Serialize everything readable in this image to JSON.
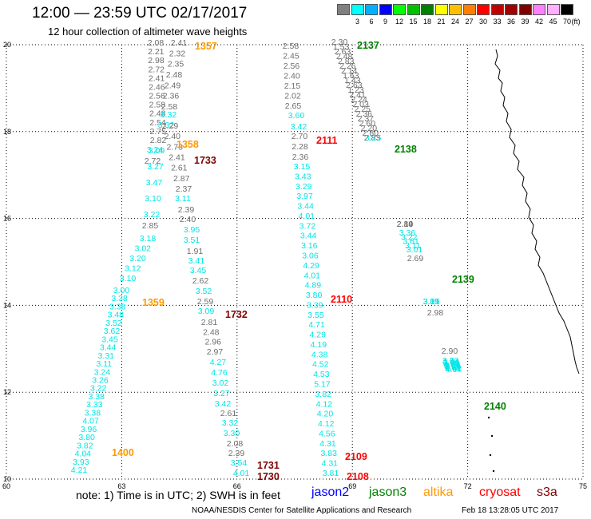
{
  "title": "12:00 — 23:59 UTC 02/17/2017",
  "subtitle": "12 hour collection of altimeter wave heights",
  "legend": {
    "unit": "(ft)",
    "bins": [
      {
        "color": "#808080",
        "label": ""
      },
      {
        "color": "#00ffff",
        "label": "3"
      },
      {
        "color": "#00b0ff",
        "label": "6"
      },
      {
        "color": "#0000ff",
        "label": "9"
      },
      {
        "color": "#00ff00",
        "label": "12"
      },
      {
        "color": "#00c000",
        "label": "15"
      },
      {
        "color": "#008000",
        "label": "18"
      },
      {
        "color": "#ffff00",
        "label": "21"
      },
      {
        "color": "#ffc000",
        "label": "24"
      },
      {
        "color": "#ff8000",
        "label": "27"
      },
      {
        "color": "#ff0000",
        "label": "30"
      },
      {
        "color": "#c00000",
        "label": "33"
      },
      {
        "color": "#a00000",
        "label": "36"
      },
      {
        "color": "#800000",
        "label": "39"
      },
      {
        "color": "#ff80ff",
        "label": "42"
      },
      {
        "color": "#ffb0ff",
        "label": "45"
      },
      {
        "color": "#000000",
        "label": "70"
      }
    ]
  },
  "colors": {
    "gray": "#6e6e6e",
    "cyan": "#00e5e5",
    "orange": "#ff9900",
    "darkred": "#800000",
    "red": "#ff0000",
    "green": "#008000",
    "blue": "#0000ff"
  },
  "axes": {
    "lon_ticks": [
      "60",
      "63",
      "66",
      "69",
      "72",
      "75"
    ],
    "lat_ticks": [
      "10",
      "12",
      "14",
      "16",
      "18",
      "20"
    ]
  },
  "tracks": [
    {
      "color": "cyan",
      "values": [
        "4.21",
        "3.93",
        "4.04",
        "3.82",
        "3.80",
        "3.96",
        "4.07",
        "3.38",
        "3.33",
        "3.38",
        "3.22",
        "3.26",
        "3.24",
        "3.11",
        "3.31",
        "3.44",
        "3.45",
        "3.62",
        "3.52",
        "3.48",
        "3.38",
        "3.38",
        "3.00"
      ]
    },
    {
      "color": "cyan",
      "values": [
        "3.10",
        "3.12",
        "3.20",
        "3.02",
        "3.18"
      ]
    },
    {
      "color": "gray",
      "values": [
        "2.85"
      ]
    },
    {
      "color": "cyan",
      "values": [
        "3.22",
        "3.10",
        "3.47",
        "3.27",
        "3.09"
      ]
    },
    {
      "color": "gray",
      "values": [
        "2.72"
      ]
    },
    {
      "color": "cyan",
      "values": [
        "3.24"
      ]
    },
    {
      "color": "gray",
      "values": [
        "2.82",
        "2.75",
        "2.54",
        "2.48",
        "2.58",
        "2.56",
        "2.46",
        "2.41",
        "2.72",
        "2.98",
        "2.21",
        "2.08"
      ]
    },
    {
      "color": "gray",
      "values": [
        "2.41",
        "2.32",
        "2.35",
        "2.48",
        "2.49",
        "2.36",
        "2.58"
      ]
    },
    {
      "color": "cyan",
      "values": [
        "3.32",
        "3.32"
      ]
    },
    {
      "color": "gray",
      "values": [
        "2.29",
        "2.40",
        "2.73",
        "2.41",
        "2.61",
        "2.87",
        "2.37"
      ]
    },
    {
      "color": "cyan",
      "values": [
        "3.11"
      ]
    },
    {
      "color": "gray",
      "values": [
        "2.39",
        "2.40"
      ]
    },
    {
      "color": "cyan",
      "values": [
        "3.95",
        "3.51"
      ]
    },
    {
      "color": "gray",
      "values": [
        "1.91"
      ]
    },
    {
      "color": "cyan",
      "values": [
        "3.41",
        "3.45"
      ]
    },
    {
      "color": "gray",
      "values": [
        "2.62"
      ]
    },
    {
      "color": "cyan",
      "values": [
        "3.52"
      ]
    },
    {
      "color": "gray",
      "values": [
        "2.59"
      ]
    },
    {
      "color": "cyan",
      "values": [
        "3.09"
      ]
    },
    {
      "color": "gray",
      "values": [
        "2.81",
        "2.48",
        "2.96",
        "2.97"
      ]
    },
    {
      "color": "cyan",
      "values": [
        "4.27",
        "4.76",
        "3.02",
        "3.27",
        "3.42"
      ]
    },
    {
      "color": "gray",
      "values": [
        "2.61"
      ]
    },
    {
      "color": "cyan",
      "values": [
        "3.32",
        "3.30"
      ]
    },
    {
      "color": "gray",
      "values": [
        "2.08",
        "2.39"
      ]
    },
    {
      "color": "cyan",
      "values": [
        "3.54",
        "4.01"
      ]
    },
    {
      "color": "gray",
      "values": [
        "2.58",
        "2.45",
        "2.56",
        "2.40",
        "2.15",
        "2.02",
        "2.65"
      ]
    },
    {
      "color": "cyan",
      "values": [
        "3.60",
        "3.42"
      ]
    },
    {
      "color": "gray",
      "values": [
        "2.70",
        "2.28",
        "2.36"
      ]
    },
    {
      "color": "cyan",
      "values": [
        "3.15",
        "3.43",
        "3.29",
        "3.97",
        "3.44",
        "4.01",
        "3.72",
        "3.44",
        "3.16",
        "3.06",
        "4.29",
        "4.01",
        "4.89",
        "3.80",
        "3.39",
        "3.55",
        "4.71",
        "4.29",
        "4.19",
        "4.38",
        "4.52",
        "4.53",
        "5.17",
        "3.82",
        "4.12",
        "4.20",
        "4.12",
        "4.56",
        "4.31",
        "3.83",
        "4.31",
        "3.81"
      ]
    },
    {
      "color": "gray",
      "values": [
        "2.30",
        "1.53",
        "2.63",
        "2.48",
        "2.83",
        "2.26",
        "2.14",
        "1.63",
        "1.43",
        "2.63",
        "1.23",
        "2.41",
        "2.24",
        "2.03",
        "2.25",
        "2.36",
        "2.37",
        "2.60",
        "2.20",
        "2.80",
        "2.83"
      ]
    },
    {
      "color": "cyan",
      "values": [
        "3.25"
      ]
    },
    {
      "color": "gray",
      "values": [
        "2.10",
        "2.84",
        "2.19"
      ]
    },
    {
      "color": "cyan",
      "values": [
        "3.36",
        "3.22",
        "3.61",
        "3.11",
        "3.01"
      ]
    },
    {
      "color": "gray",
      "values": [
        "2.69"
      ]
    },
    {
      "color": "cyan",
      "values": [
        "3.51",
        "3.05",
        "3.31",
        "3.19"
      ]
    },
    {
      "color": "gray",
      "values": [
        "2.98",
        "2.90"
      ]
    },
    {
      "color": "cyan",
      "values": [
        "3.70",
        "4.04",
        "3.44",
        "3.53",
        "4.20",
        "4.61",
        "3.56",
        "3.99",
        "4.59",
        "5.41",
        "4.61",
        "4.07"
      ]
    }
  ],
  "pass_labels": [
    {
      "text": "1357",
      "color": "orange"
    },
    {
      "text": "1358",
      "color": "orange"
    },
    {
      "text": "1359",
      "color": "orange"
    },
    {
      "text": "1400",
      "color": "orange"
    },
    {
      "text": "1733",
      "color": "darkred"
    },
    {
      "text": "1732",
      "color": "darkred"
    },
    {
      "text": "1731",
      "color": "darkred"
    },
    {
      "text": "1730",
      "color": "darkred"
    },
    {
      "text": "2111",
      "color": "red"
    },
    {
      "text": "2110",
      "color": "red"
    },
    {
      "text": "2109",
      "color": "red"
    },
    {
      "text": "2108",
      "color": "red"
    },
    {
      "text": "2137",
      "color": "green"
    },
    {
      "text": "2138",
      "color": "green"
    },
    {
      "text": "2139",
      "color": "green"
    },
    {
      "text": "2140",
      "color": "green"
    }
  ],
  "note": "note: 1) Time is in UTC; 2) SWH is in feet",
  "missions": [
    {
      "name": "jason2",
      "color": "#0000ff"
    },
    {
      "name": "jason3",
      "color": "#008000"
    },
    {
      "name": "altika",
      "color": "#ff9900"
    },
    {
      "name": "cryosat",
      "color": "#ff0000"
    },
    {
      "name": "s3a",
      "color": "#800000"
    }
  ],
  "credit": "NOAA/NESDIS Center for Satellite Applications and Research",
  "generated": "Feb 18 13:28:05 UTC 2017"
}
